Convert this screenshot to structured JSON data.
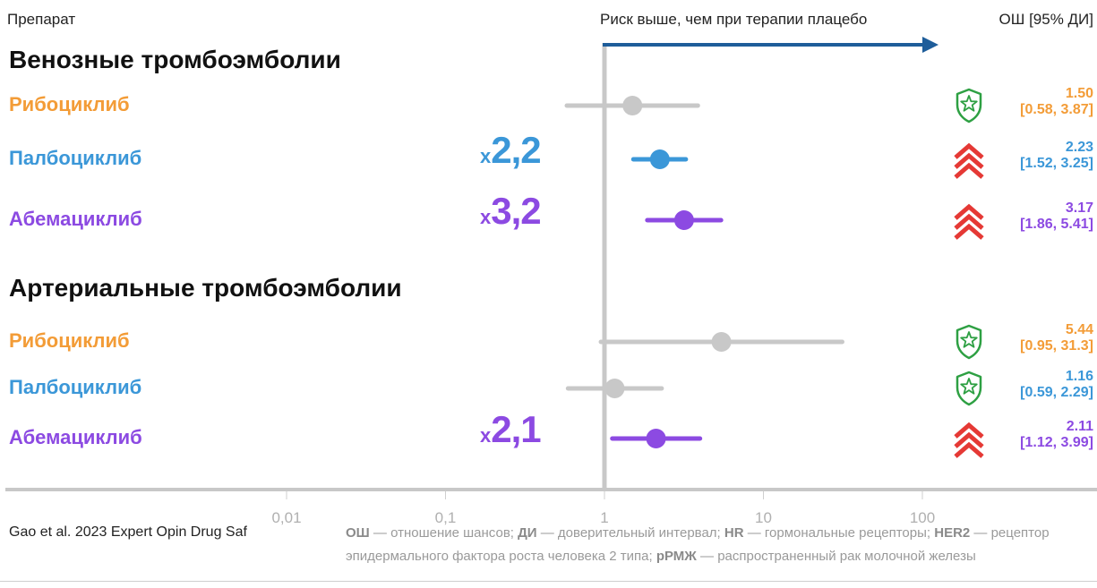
{
  "header": {
    "drug_col": "Препарат",
    "risk": "Риск выше, чем при терапии плацебо",
    "or_col": "ОШ [95% ДИ]"
  },
  "colors": {
    "ribociclib": "#f39c37",
    "palbociclib": "#3b97d8",
    "abemaciclib": "#8c4ae2",
    "gray": "#c8c8c8",
    "arrow": "#1e5d9a",
    "shield": "#2ea043",
    "chevron": "#e53935"
  },
  "sections": [
    {
      "title": "Венозные тромбоэмболии",
      "rows": [
        {
          "drug": "Рибоциклиб",
          "color_key": "ribociclib",
          "icon": "shield-star-icon",
          "or": "1.50",
          "ci": "[0.58, 3.87]",
          "multiplier": null
        },
        {
          "drug": "Палбоциклиб",
          "color_key": "palbociclib",
          "icon": "double-chevron-up-icon",
          "or": "2.23",
          "ci": "[1.52, 3.25]",
          "multiplier": "2,2"
        },
        {
          "drug": "Абемациклиб",
          "color_key": "abemaciclib",
          "icon": "double-chevron-up-icon",
          "or": "3.17",
          "ci": "[1.86, 5.41]",
          "multiplier": "3,2"
        }
      ]
    },
    {
      "title": "Артериальные тромбоэмболии",
      "rows": [
        {
          "drug": "Рибоциклиб",
          "color_key": "ribociclib",
          "icon": "shield-star-icon",
          "or": "5.44",
          "ci": "[0.95, 31.3]",
          "multiplier": null
        },
        {
          "drug": "Палбоциклиб",
          "color_key": "palbociclib",
          "icon": "shield-star-icon",
          "or": "1.16",
          "ci": "[0.59, 2.29]",
          "multiplier": null
        },
        {
          "drug": "Абемациклиб",
          "color_key": "abemaciclib",
          "icon": "double-chevron-up-icon",
          "or": "2.11",
          "ci": "[1.12, 3.99]",
          "multiplier": "2,1"
        }
      ]
    }
  ],
  "multiplier_prefix": "x",
  "chart_data": {
    "type": "scatter",
    "scale": "log",
    "reference_line": 1,
    "xlim": [
      0.01,
      100
    ],
    "x_ticks": [
      0.01,
      0.1,
      1,
      10,
      100
    ],
    "x_tick_labels": [
      "0,01",
      "0,1",
      "1",
      "10",
      "100"
    ],
    "series": [
      {
        "group": "Венозные тромбоэмболии",
        "label": "Рибоциклиб",
        "or": 1.5,
        "ci_low": 0.58,
        "ci_high": 3.87,
        "significant": false
      },
      {
        "group": "Венозные тромбоэмболии",
        "label": "Палбоциклиб",
        "or": 2.23,
        "ci_low": 1.52,
        "ci_high": 3.25,
        "significant": true
      },
      {
        "group": "Венозные тромбоэмболии",
        "label": "Абемациклиб",
        "or": 3.17,
        "ci_low": 1.86,
        "ci_high": 5.41,
        "significant": true
      },
      {
        "group": "Артериальные тромбоэмболии",
        "label": "Рибоциклиб",
        "or": 5.44,
        "ci_low": 0.95,
        "ci_high": 31.3,
        "significant": false
      },
      {
        "group": "Артериальные тромбоэмболии",
        "label": "Палбоциклиб",
        "or": 1.16,
        "ci_low": 0.59,
        "ci_high": 2.29,
        "significant": false
      },
      {
        "group": "Артериальные тромбоэмболии",
        "label": "Абемациклиб",
        "or": 2.11,
        "ci_low": 1.12,
        "ci_high": 3.99,
        "significant": true
      }
    ]
  },
  "footer": {
    "source": "Gao et al. 2023 Expert Opin Drug Saf",
    "abbr": [
      {
        "term": "ОШ",
        "def": " — отношение шансов; "
      },
      {
        "term": "ДИ",
        "def": " — доверительный интервал; "
      },
      {
        "term": "HR",
        "def": " — гормональные рецепторы; "
      },
      {
        "term": "HER2",
        "def": " — рецептор эпидермального фактора роста человека 2 типа; "
      },
      {
        "term": "рРМЖ",
        "def": " — распространенный рак молочной железы"
      }
    ]
  }
}
